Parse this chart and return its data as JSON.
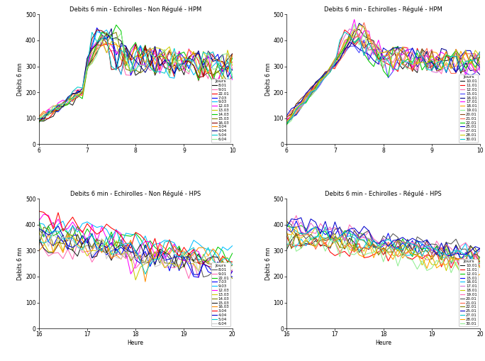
{
  "titles": [
    "Debits 6 min - Echirolles - Non Régulé - HPM",
    "Debits 6 min - Echirolles - Régulé - HPM",
    "Debits 6 min - Echirolles - Non Régulé - HPS",
    "Debits 6 min - Echirolles - Régulé - HPS"
  ],
  "ylabel": "Debits 6 mn",
  "xlabel_bottom": "Heure",
  "ylim": [
    0,
    500
  ],
  "hpm_xlim": [
    6,
    10
  ],
  "hps_xlim": [
    16,
    20
  ],
  "hpm_xticks": [
    6,
    7,
    8,
    9,
    10
  ],
  "hps_xticks": [
    16,
    17,
    18,
    19,
    20
  ],
  "legend_title": "Jours",
  "nr_hpm_days": [
    "8.01",
    "9.01",
    "22.01",
    "7.03",
    "9.03",
    "12.03",
    "13.03",
    "14.03",
    "15.03",
    "16.03",
    "3.04",
    "4.04",
    "5.04",
    "6.04"
  ],
  "r_hpm_days": [
    "10.01",
    "11.01",
    "12.01",
    "15.01",
    "16.01",
    "17.01",
    "18.01",
    "19.01",
    "20.01",
    "21.01",
    "22.01",
    "25.01",
    "27.01",
    "28.01",
    "30.01"
  ],
  "nr_hps_days": [
    "8.01",
    "9.01",
    "22.01",
    "7.03",
    "9.03",
    "12.03",
    "13.03",
    "14.03",
    "15.03",
    "16.03",
    "3.04",
    "4.04",
    "5.04",
    "6.04"
  ],
  "r_hps_days": [
    "10.01",
    "11.01",
    "12.01",
    "15.01",
    "16.01",
    "17.01",
    "18.01",
    "19.01",
    "20.01",
    "21.01",
    "22.01",
    "25.01",
    "27.01",
    "28.01",
    "30.01"
  ],
  "nr_hpm_colors": [
    "#1a1a1a",
    "#ff69b4",
    "#ff0000",
    "#0000ff",
    "#00bfff",
    "#ff00ff",
    "#cccc00",
    "#00cc00",
    "#808000",
    "#8b0000",
    "#ff8c00",
    "#000080",
    "#00cccc",
    "#90ee90"
  ],
  "r_hpm_colors": [
    "#1a1a1a",
    "#ff0000",
    "#ff69b4",
    "#4040ff",
    "#00008b",
    "#ff00ff",
    "#ffa500",
    "#90ee90",
    "#8b4513",
    "#ff6347",
    "#00cc00",
    "#0000cd",
    "#da70d6",
    "#cccc00",
    "#00cccc"
  ],
  "nr_hps_colors": [
    "#555555",
    "#ff69b4",
    "#00cc00",
    "#0000ff",
    "#00bfff",
    "#ff00ff",
    "#cccc00",
    "#808000",
    "#222222",
    "#ff8c00",
    "#ff0000",
    "#0000cd",
    "#00cccc",
    "#cccccc"
  ],
  "r_hps_colors": [
    "#1a1a1a",
    "#ff0000",
    "#00cc00",
    "#0000ff",
    "#00bfff",
    "#da70d6",
    "#cccc00",
    "#ff69b4",
    "#555555",
    "#ff6347",
    "#808000",
    "#0000cd",
    "#00cccc",
    "#ffa500",
    "#90ee90"
  ]
}
